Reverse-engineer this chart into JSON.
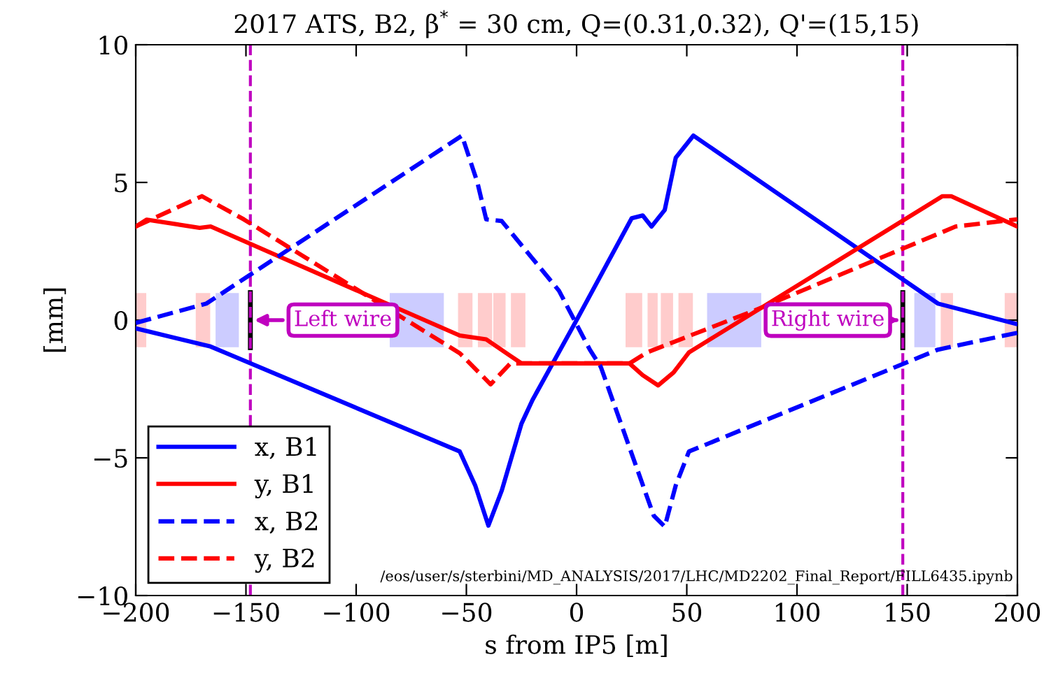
{
  "chart_data": {
    "type": "line",
    "title": "2017 ATS, B2, β$^{*}$ = 30 cm, Q=(0.31,0.32), Q'=(15,15)",
    "xlabel": "s from IP5 [m]",
    "ylabel": "[mm]",
    "xlim": [
      -200,
      200
    ],
    "xticks": [
      {
        "value": -200,
        "label": "−200"
      },
      {
        "value": -150,
        "label": "−150"
      },
      {
        "value": -100,
        "label": "−100"
      },
      {
        "value": -50,
        "label": "−50"
      },
      0,
      50,
      100,
      150,
      200
    ],
    "ylim": [
      -10,
      10
    ],
    "yticks": [
      {
        "value": -10,
        "label": "−10"
      },
      {
        "value": -5,
        "label": "−5"
      },
      0,
      5,
      10
    ],
    "grid": false,
    "legend": "bottom left",
    "series": [
      {
        "name": "x, B1",
        "color": "#0000ff",
        "line_style": "solid",
        "x": [
          -200,
          -166,
          -53,
          -46,
          -40,
          -34,
          -25,
          -20,
          0,
          25,
          30,
          34,
          40,
          45,
          53,
          164,
          200
        ],
        "values": [
          -0.3,
          -0.96,
          -4.77,
          -6.0,
          -7.46,
          -6.2,
          -3.76,
          -2.9,
          0,
          3.7,
          3.8,
          3.4,
          4.0,
          5.9,
          6.7,
          0.6,
          -0.15
        ]
      },
      {
        "name": "y, B1",
        "color": "#ff0000",
        "line_style": "solid",
        "x": [
          -200,
          -195,
          -171,
          -166,
          -53,
          -41,
          -30,
          -25,
          24,
          30,
          37,
          44,
          51,
          166,
          170,
          200
        ],
        "values": [
          3.4,
          3.65,
          3.35,
          3.4,
          -0.56,
          -0.7,
          -1.3,
          -1.57,
          -1.57,
          -2.0,
          -2.37,
          -1.9,
          -1.17,
          4.5,
          4.5,
          3.4
        ]
      },
      {
        "name": "x, B2",
        "color": "#0000ff",
        "line_style": "dashed",
        "x": [
          -200,
          -168,
          -52,
          -45,
          -41,
          -34,
          -8,
          6,
          11,
          35,
          40,
          45,
          51,
          164,
          200
        ],
        "values": [
          -0.1,
          0.6,
          6.7,
          5.0,
          3.66,
          3.6,
          1.07,
          -1.07,
          -1.7,
          -7.1,
          -7.5,
          -6.0,
          -4.77,
          -1.07,
          -0.46
        ]
      },
      {
        "name": "y, B2",
        "color": "#ff0000",
        "line_style": "dashed",
        "x": [
          -200,
          -170,
          -151,
          -53,
          -39,
          -30,
          24,
          32,
          81,
          172,
          200
        ],
        "values": [
          3.4,
          4.5,
          3.66,
          -1.2,
          -2.33,
          -1.57,
          -1.57,
          -1.17,
          0.36,
          3.4,
          3.66
        ]
      }
    ],
    "ref_lines": [
      {
        "axis": "x",
        "value": -148,
        "color": "#bf00bf",
        "line_style": "dashed"
      },
      {
        "axis": "x",
        "value": 148,
        "color": "#bf00bf",
        "line_style": "dashed"
      }
    ],
    "annotations": [
      {
        "text": "Left wire",
        "x": -148,
        "y": 0
      },
      {
        "text": "Right wire",
        "x": 148,
        "y": 0
      },
      "/eos/user/s/sterbini/MD_ANALYSIS/2017/LHC/MD2202_Final_Report/FILL6435.ipynb"
    ]
  }
}
